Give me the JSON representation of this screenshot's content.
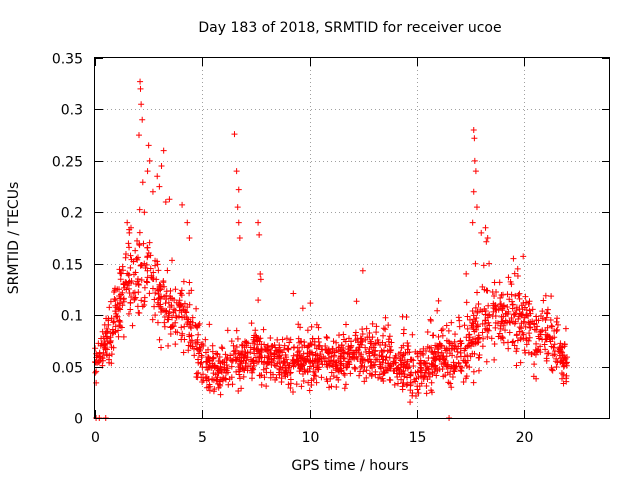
{
  "chart_data": {
    "type": "scatter",
    "title": "Day 183 of 2018, SRMTID for receiver ucoe",
    "xlabel": "GPS time / hours",
    "ylabel": "SRMTID / TECUs",
    "xlim": [
      0,
      24
    ],
    "ylim": [
      0,
      0.35
    ],
    "xticks": [
      0,
      5,
      10,
      15,
      20
    ],
    "xtick_labels": [
      "0",
      "5",
      "10",
      "15",
      "20"
    ],
    "yticks": [
      0,
      0.05,
      0.1,
      0.15,
      0.2,
      0.25,
      0.3,
      0.35
    ],
    "ytick_labels": [
      "0",
      "0.05",
      "0.1",
      "0.15",
      "0.2",
      "0.25",
      "0.3",
      "0.35"
    ],
    "grid": true,
    "marker": "+",
    "color": "#ff0000",
    "envelope": {
      "x": [
        0,
        0.5,
        1,
        1.5,
        2,
        2.5,
        3,
        3.5,
        4,
        4.5,
        5,
        5.5,
        6,
        6.5,
        7,
        7.5,
        8,
        9,
        10,
        11,
        12,
        12.5,
        13,
        14,
        15,
        15.5,
        16,
        16.5,
        17,
        17.5,
        18,
        18.5,
        19,
        19.5,
        20,
        20.5,
        21,
        21.5,
        22
      ],
      "mean": [
        0.055,
        0.07,
        0.1,
        0.13,
        0.14,
        0.14,
        0.12,
        0.11,
        0.1,
        0.09,
        0.05,
        0.045,
        0.04,
        0.06,
        0.055,
        0.065,
        0.055,
        0.055,
        0.06,
        0.055,
        0.06,
        0.065,
        0.06,
        0.055,
        0.045,
        0.05,
        0.06,
        0.055,
        0.065,
        0.08,
        0.09,
        0.1,
        0.095,
        0.1,
        0.09,
        0.08,
        0.08,
        0.07,
        0.05
      ],
      "spread": [
        0.015,
        0.02,
        0.03,
        0.035,
        0.04,
        0.04,
        0.035,
        0.03,
        0.03,
        0.03,
        0.02,
        0.02,
        0.02,
        0.025,
        0.02,
        0.025,
        0.02,
        0.02,
        0.02,
        0.02,
        0.02,
        0.025,
        0.02,
        0.02,
        0.02,
        0.02,
        0.02,
        0.02,
        0.025,
        0.03,
        0.03,
        0.03,
        0.03,
        0.03,
        0.03,
        0.03,
        0.03,
        0.025,
        0.015
      ]
    },
    "spikes": [
      {
        "x": 2.1,
        "y": 0.327
      },
      {
        "x": 2.12,
        "y": 0.32
      },
      {
        "x": 2.15,
        "y": 0.305
      },
      {
        "x": 2.2,
        "y": 0.29
      },
      {
        "x": 2.05,
        "y": 0.275
      },
      {
        "x": 2.5,
        "y": 0.265
      },
      {
        "x": 2.55,
        "y": 0.25
      },
      {
        "x": 2.45,
        "y": 0.24
      },
      {
        "x": 3.2,
        "y": 0.26
      },
      {
        "x": 3.1,
        "y": 0.245
      },
      {
        "x": 2.9,
        "y": 0.235
      },
      {
        "x": 3.0,
        "y": 0.225
      },
      {
        "x": 2.7,
        "y": 0.22
      },
      {
        "x": 2.3,
        "y": 0.2
      },
      {
        "x": 3.3,
        "y": 0.21
      },
      {
        "x": 6.5,
        "y": 0.276
      },
      {
        "x": 6.6,
        "y": 0.24
      },
      {
        "x": 6.7,
        "y": 0.222
      },
      {
        "x": 6.65,
        "y": 0.205
      },
      {
        "x": 6.7,
        "y": 0.19
      },
      {
        "x": 6.75,
        "y": 0.175
      },
      {
        "x": 7.6,
        "y": 0.19
      },
      {
        "x": 7.65,
        "y": 0.178
      },
      {
        "x": 7.7,
        "y": 0.14
      },
      {
        "x": 17.65,
        "y": 0.28
      },
      {
        "x": 17.68,
        "y": 0.272
      },
      {
        "x": 17.7,
        "y": 0.25
      },
      {
        "x": 17.75,
        "y": 0.24
      },
      {
        "x": 17.65,
        "y": 0.22
      },
      {
        "x": 17.8,
        "y": 0.205
      },
      {
        "x": 17.6,
        "y": 0.19
      },
      {
        "x": 18.0,
        "y": 0.18
      },
      {
        "x": 18.2,
        "y": 0.185
      },
      {
        "x": 18.3,
        "y": 0.175
      },
      {
        "x": 19.5,
        "y": 0.155
      },
      {
        "x": 19.7,
        "y": 0.145
      },
      {
        "x": 4.3,
        "y": 0.19
      },
      {
        "x": 4.4,
        "y": 0.175
      },
      {
        "x": 1.5,
        "y": 0.19
      },
      {
        "x": 1.6,
        "y": 0.18
      }
    ],
    "zeros": [
      {
        "x": 0.05,
        "y": 0
      },
      {
        "x": 0.2,
        "y": 0
      },
      {
        "x": 0.5,
        "y": 0
      },
      {
        "x": 16.5,
        "y": 0
      }
    ],
    "point_count": 1800,
    "seed": 183
  }
}
